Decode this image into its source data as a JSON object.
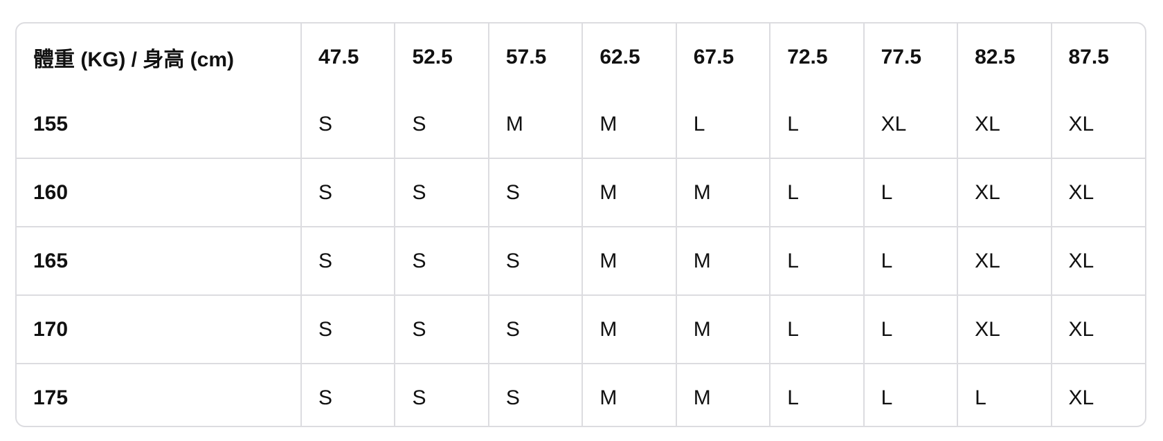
{
  "table": {
    "corner_header": "體重 (KG) / 身高 (cm)",
    "weights": [
      "47.5",
      "52.5",
      "57.5",
      "62.5",
      "67.5",
      "72.5",
      "77.5",
      "82.5",
      "87.5"
    ],
    "rows": [
      {
        "height": "155",
        "sizes": [
          "S",
          "S",
          "M",
          "M",
          "L",
          "L",
          "XL",
          "XL",
          "XL"
        ]
      },
      {
        "height": "160",
        "sizes": [
          "S",
          "S",
          "S",
          "M",
          "M",
          "L",
          "L",
          "XL",
          "XL"
        ]
      },
      {
        "height": "165",
        "sizes": [
          "S",
          "S",
          "S",
          "M",
          "M",
          "L",
          "L",
          "XL",
          "XL"
        ]
      },
      {
        "height": "170",
        "sizes": [
          "S",
          "S",
          "S",
          "M",
          "M",
          "L",
          "L",
          "XL",
          "XL"
        ]
      },
      {
        "height": "175",
        "sizes": [
          "S",
          "S",
          "S",
          "M",
          "M",
          "L",
          "L",
          "L",
          "XL"
        ]
      }
    ]
  }
}
